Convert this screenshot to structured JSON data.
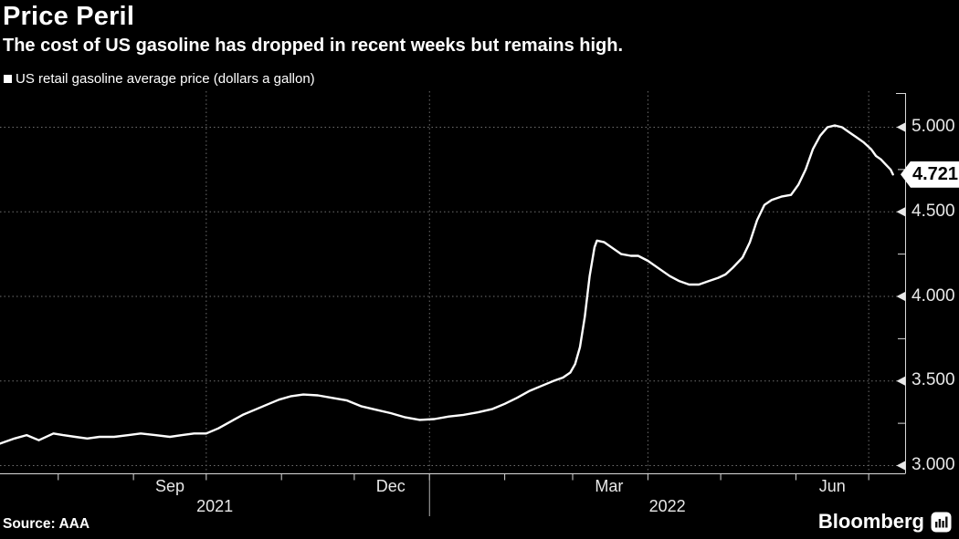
{
  "header": {
    "title": "Price Peril",
    "subtitle": "The cost of US gasoline has dropped in recent weeks but remains high."
  },
  "legend": {
    "label": "US retail gasoline average price (dollars a gallon)",
    "marker": "square",
    "marker_color": "#ffffff"
  },
  "colors": {
    "background": "#000000",
    "line": "#ffffff",
    "grid": "#6f6f6f",
    "axis": "#d9d9d9",
    "axis_text": "#e8e8e8",
    "year_divider": "#b0b0b0",
    "callout_bg": "#ffffff",
    "callout_text": "#000000"
  },
  "chart_data": {
    "type": "line",
    "title": "US retail gasoline average price (dollars a gallon)",
    "xlabel": "",
    "ylabel": "dollars a gallon",
    "x_start": "2021-07-08",
    "x_end": "2022-07-16",
    "ylim": [
      2.94,
      5.21
    ],
    "grid": "dotted",
    "legend_position": "top-left",
    "y_ticks": [
      {
        "value": 3.0,
        "label": "3.000"
      },
      {
        "value": 3.5,
        "label": "3.500"
      },
      {
        "value": 4.0,
        "label": "4.000"
      },
      {
        "value": 4.5,
        "label": "4.500"
      },
      {
        "value": 5.0,
        "label": "5.000"
      }
    ],
    "y_minor_ticks": [
      3.25,
      3.75,
      4.25,
      4.75
    ],
    "x_month_ticks": [
      "2021-08-01",
      "2021-09-01",
      "2021-10-01",
      "2021-11-01",
      "2021-12-01",
      "2022-01-01",
      "2022-02-01",
      "2022-03-01",
      "2022-04-01",
      "2022-05-01",
      "2022-06-01",
      "2022-07-01"
    ],
    "x_month_labels": [
      {
        "label": "Sep",
        "date": "2021-09-16"
      },
      {
        "label": "Dec",
        "date": "2021-12-16"
      },
      {
        "label": "Mar",
        "date": "2022-03-16"
      },
      {
        "label": "Jun",
        "date": "2022-06-16"
      }
    ],
    "x_year_labels": [
      {
        "label": "2021",
        "span": [
          "2021-07-08",
          "2022-01-01"
        ]
      },
      {
        "label": "2022",
        "span": [
          "2022-01-01",
          "2022-07-16"
        ]
      }
    ],
    "x_quarter_gridlines": [
      "2021-10-01",
      "2022-01-01",
      "2022-04-01",
      "2022-07-01"
    ],
    "x_year_divider": "2022-01-01",
    "last_point_label": "4.721",
    "last_point_value": 4.721,
    "series": [
      {
        "name": "US retail gasoline average price",
        "points": [
          [
            "2021-07-08",
            3.13
          ],
          [
            "2021-07-14",
            3.16
          ],
          [
            "2021-07-19",
            3.18
          ],
          [
            "2021-07-24",
            3.15
          ],
          [
            "2021-07-30",
            3.19
          ],
          [
            "2021-08-03",
            3.18
          ],
          [
            "2021-08-08",
            3.17
          ],
          [
            "2021-08-13",
            3.16
          ],
          [
            "2021-08-18",
            3.17
          ],
          [
            "2021-08-24",
            3.17
          ],
          [
            "2021-08-30",
            3.18
          ],
          [
            "2021-09-04",
            3.19
          ],
          [
            "2021-09-10",
            3.18
          ],
          [
            "2021-09-16",
            3.17
          ],
          [
            "2021-09-21",
            3.18
          ],
          [
            "2021-09-26",
            3.19
          ],
          [
            "2021-10-01",
            3.19
          ],
          [
            "2021-10-06",
            3.22
          ],
          [
            "2021-10-11",
            3.26
          ],
          [
            "2021-10-16",
            3.3
          ],
          [
            "2021-10-21",
            3.33
          ],
          [
            "2021-10-26",
            3.36
          ],
          [
            "2021-10-31",
            3.39
          ],
          [
            "2021-11-05",
            3.41
          ],
          [
            "2021-11-10",
            3.42
          ],
          [
            "2021-11-16",
            3.415
          ],
          [
            "2021-11-22",
            3.4
          ],
          [
            "2021-11-28",
            3.385
          ],
          [
            "2021-12-04",
            3.35
          ],
          [
            "2021-12-10",
            3.33
          ],
          [
            "2021-12-16",
            3.31
          ],
          [
            "2021-12-22",
            3.285
          ],
          [
            "2021-12-28",
            3.27
          ],
          [
            "2022-01-03",
            3.275
          ],
          [
            "2022-01-09",
            3.29
          ],
          [
            "2022-01-15",
            3.3
          ],
          [
            "2022-01-21",
            3.315
          ],
          [
            "2022-01-27",
            3.335
          ],
          [
            "2022-02-01",
            3.365
          ],
          [
            "2022-02-06",
            3.4
          ],
          [
            "2022-02-11",
            3.44
          ],
          [
            "2022-02-16",
            3.47
          ],
          [
            "2022-02-21",
            3.5
          ],
          [
            "2022-02-25",
            3.52
          ],
          [
            "2022-02-28",
            3.55
          ],
          [
            "2022-03-02",
            3.6
          ],
          [
            "2022-03-04",
            3.7
          ],
          [
            "2022-03-06",
            3.88
          ],
          [
            "2022-03-08",
            4.12
          ],
          [
            "2022-03-10",
            4.29
          ],
          [
            "2022-03-11",
            4.33
          ],
          [
            "2022-03-14",
            4.32
          ],
          [
            "2022-03-17",
            4.29
          ],
          [
            "2022-03-21",
            4.25
          ],
          [
            "2022-03-25",
            4.24
          ],
          [
            "2022-03-28",
            4.24
          ],
          [
            "2022-04-01",
            4.21
          ],
          [
            "2022-04-06",
            4.16
          ],
          [
            "2022-04-10",
            4.12
          ],
          [
            "2022-04-14",
            4.09
          ],
          [
            "2022-04-18",
            4.07
          ],
          [
            "2022-04-22",
            4.07
          ],
          [
            "2022-04-26",
            4.09
          ],
          [
            "2022-04-30",
            4.11
          ],
          [
            "2022-05-03",
            4.13
          ],
          [
            "2022-05-06",
            4.17
          ],
          [
            "2022-05-10",
            4.23
          ],
          [
            "2022-05-13",
            4.32
          ],
          [
            "2022-05-16",
            4.45
          ],
          [
            "2022-05-19",
            4.54
          ],
          [
            "2022-05-22",
            4.57
          ],
          [
            "2022-05-26",
            4.59
          ],
          [
            "2022-05-30",
            4.6
          ],
          [
            "2022-06-02",
            4.66
          ],
          [
            "2022-06-05",
            4.75
          ],
          [
            "2022-06-08",
            4.87
          ],
          [
            "2022-06-11",
            4.95
          ],
          [
            "2022-06-14",
            5.0
          ],
          [
            "2022-06-17",
            5.01
          ],
          [
            "2022-06-20",
            5.0
          ],
          [
            "2022-06-23",
            4.97
          ],
          [
            "2022-06-26",
            4.94
          ],
          [
            "2022-06-29",
            4.91
          ],
          [
            "2022-07-02",
            4.87
          ],
          [
            "2022-07-04",
            4.83
          ],
          [
            "2022-07-06",
            4.81
          ],
          [
            "2022-07-08",
            4.78
          ],
          [
            "2022-07-10",
            4.75
          ],
          [
            "2022-07-11",
            4.721
          ]
        ]
      }
    ]
  },
  "footer": {
    "source": "Source: AAA",
    "brand": "Bloomberg",
    "brand_icon": "bar-chart-icon"
  }
}
